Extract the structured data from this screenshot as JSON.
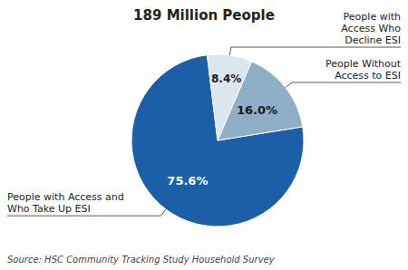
{
  "chart_data": {
    "type": "pie",
    "title": "189 Million People",
    "categories": [
      "People with Access and\nWho Take Up ESI",
      "People Without\nAccess to ESI",
      "People with\nAccess Who\nDecline ESI"
    ],
    "values": [
      75.6,
      16.0,
      8.4
    ],
    "value_labels": [
      "75.6%",
      "16.0%",
      "8.4%"
    ],
    "data_labels": true,
    "colors": [
      "#1a5fa8",
      "#8faec8",
      "#dce6ee"
    ],
    "annotations": [
      "Source: HSC Community Tracking Study Household Survey"
    ]
  }
}
